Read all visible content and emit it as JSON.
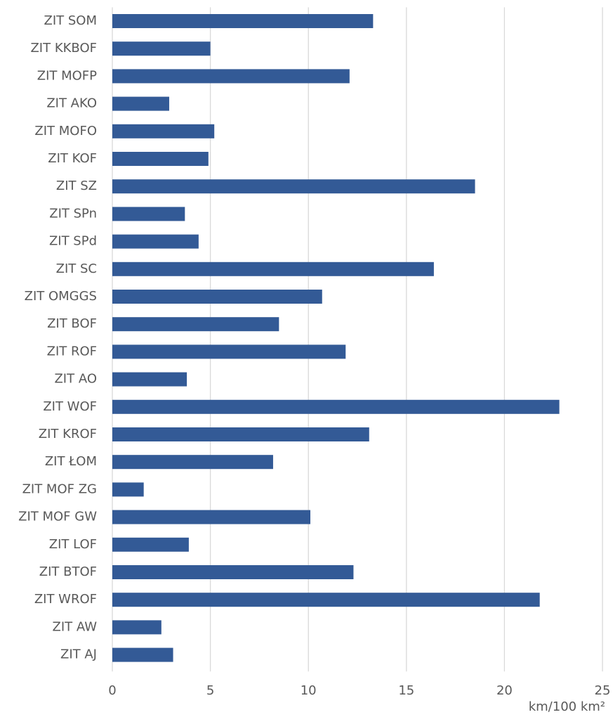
{
  "chart_data": {
    "type": "bar",
    "orientation": "horizontal",
    "categories": [
      "ZIT SOM",
      "ZIT KKBOF",
      "ZIT MOFP",
      "ZIT AKO",
      "ZIT MOFO",
      "ZIT KOF",
      "ZIT SZ",
      "ZIT SPn",
      "ZIT SPd",
      "ZIT SC",
      "ZIT OMGGS",
      "ZIT BOF",
      "ZIT ROF",
      "ZIT AO",
      "ZIT WOF",
      "ZIT KROF",
      "ZIT ŁOM",
      "ZIT MOF ZG",
      "ZIT MOF GW",
      "ZIT LOF",
      "ZIT BTOF",
      "ZIT WROF",
      "ZIT AW",
      "ZIT AJ"
    ],
    "values": [
      13.3,
      5.0,
      12.1,
      2.9,
      5.2,
      4.9,
      18.5,
      3.7,
      4.4,
      16.4,
      10.7,
      8.5,
      11.9,
      3.8,
      22.8,
      13.1,
      8.2,
      1.6,
      10.1,
      3.9,
      12.3,
      21.8,
      2.5,
      3.1
    ],
    "color": "#335a96",
    "x_label": "km/100 km²",
    "xlim": [
      0,
      25
    ],
    "xticks": [
      0,
      5,
      10,
      15,
      20,
      25
    ],
    "grid": true
  }
}
